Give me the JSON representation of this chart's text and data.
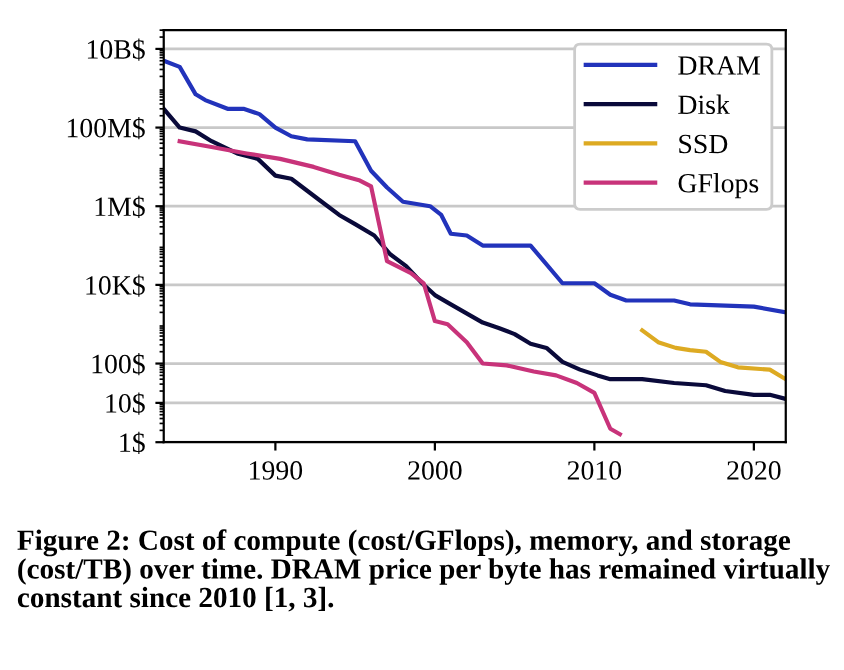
{
  "chart_data": {
    "type": "line",
    "log": "y",
    "grid": "y",
    "legend": "top right",
    "xlim": [
      1983,
      2022
    ],
    "xticks": [
      1990,
      2000,
      2010,
      2020
    ],
    "ylim": [
      1,
      30000000000
    ],
    "yticks": [
      {
        "value": 1,
        "label": "1$"
      },
      {
        "value": 10,
        "label": "10$"
      },
      {
        "value": 100,
        "label": "100$"
      },
      {
        "value": 10000,
        "label": "10K$"
      },
      {
        "value": 1000000,
        "label": "1M$"
      },
      {
        "value": 100000000,
        "label": "100M$"
      },
      {
        "value": 10000000000,
        "label": "10B$"
      }
    ],
    "series": [
      {
        "name": "DRAM",
        "color": "#2233bb",
        "x": [
          1983,
          1984,
          1985,
          1985.6,
          1987,
          1988,
          1989,
          1990,
          1991,
          1992,
          1995,
          1996,
          1997,
          1998,
          1999.7,
          2000.4,
          2001,
          2002,
          2003,
          2006,
          2008,
          2010,
          2011,
          2012,
          2015,
          2016,
          2020,
          2022
        ],
        "values": [
          5000000000,
          3500000000,
          700000000,
          500000000,
          300000000,
          300000000,
          220000000,
          100000000,
          60000000,
          50000000,
          45000000,
          8000000,
          3000000,
          1300000,
          1000000,
          600000,
          200000,
          180000,
          100000,
          100000,
          11000,
          11000,
          5600,
          4000,
          4000,
          3200,
          2800,
          2000
        ]
      },
      {
        "name": "Disk",
        "color": "#0a0a3a",
        "x": [
          1983,
          1984,
          1985,
          1986,
          1987.6,
          1988.9,
          1990,
          1991,
          1992.8,
          1994,
          1995,
          1996.2,
          1997.2,
          1998.2,
          1999.2,
          2000,
          2001,
          2003,
          2004,
          2005,
          2006,
          2007,
          2008,
          2009.1,
          2010.2,
          2011,
          2013,
          2015,
          2017,
          2018.2,
          2020,
          2021,
          2022
        ],
        "values": [
          300000000,
          100000000,
          80000000,
          45000000,
          22000000,
          16000000,
          6000000,
          5000000,
          1400000,
          600000,
          350000,
          180000,
          60000,
          30000,
          11000,
          5500,
          3200,
          1100,
          800,
          560,
          320,
          250,
          110,
          70,
          50,
          40,
          40,
          32,
          28,
          20,
          16,
          16,
          12.6
        ]
      },
      {
        "name": "SSD",
        "color": "#ddaa22",
        "x": [
          2013,
          2014,
          2015.1,
          2016,
          2017,
          2017.9,
          2019,
          2021,
          2022
        ],
        "values": [
          700,
          350,
          250,
          220,
          200,
          110,
          80,
          70,
          40
        ]
      },
      {
        "name": "GFlops",
        "color": "#c8337a",
        "x": [
          1984,
          1986,
          1988.2,
          1990.3,
          1992.4,
          1994,
          1995.3,
          1996,
          1997,
          1998.5,
          1999.3,
          2000,
          2000.8,
          2002,
          2003,
          2004.5,
          2006.2,
          2007.6,
          2008.9,
          2010,
          2011,
          2011.6
        ],
        "values": [
          45000000,
          32000000,
          22000000,
          16000000,
          10000000,
          6300000,
          4500000,
          3200000,
          40000,
          20000,
          11000,
          1200,
          1000,
          350,
          100,
          90,
          63,
          50,
          32,
          18,
          2.2,
          1.6
        ]
      }
    ],
    "annotations": [
      "Figure 2: Cost of compute (cost/GFlops), memory, and storage (cost/TB) over time. DRAM price per byte has remained virtually constant since 2010 [1, 3]."
    ]
  }
}
